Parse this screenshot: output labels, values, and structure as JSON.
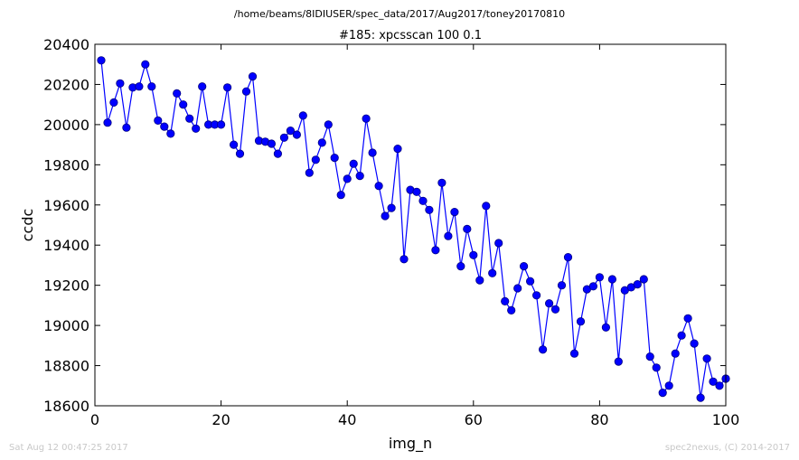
{
  "chart_data": {
    "type": "line",
    "suptitle": "/home/beams/8IDIUSER/spec_data/2017/Aug2017/toney20170810",
    "title": "#185: xpcsscan 100 0.1",
    "xlabel": "img_n",
    "ylabel": "ccdc",
    "xlim": [
      0,
      100
    ],
    "ylim": [
      18600,
      20400
    ],
    "xticks": [
      0,
      20,
      40,
      60,
      80,
      100
    ],
    "yticks": [
      18600,
      18800,
      19000,
      19200,
      19400,
      19600,
      19800,
      20000,
      20200,
      20400
    ],
    "grid": false,
    "line_color": "#0000ff",
    "marker_color": "#0000ff",
    "series": [
      {
        "x": [
          1,
          2,
          3,
          4,
          5,
          6,
          7,
          8,
          9,
          10,
          11,
          12,
          13,
          14,
          15,
          16,
          17,
          18,
          19,
          20,
          21,
          22,
          23,
          24,
          25,
          26,
          27,
          28,
          29,
          30,
          31,
          32,
          33,
          34,
          35,
          36,
          37,
          38,
          39,
          40,
          41,
          42,
          43,
          44,
          45,
          46,
          47,
          48,
          49,
          50,
          51,
          52,
          53,
          54,
          55,
          56,
          57,
          58,
          59,
          60,
          61,
          62,
          63,
          64,
          65,
          66,
          67,
          68,
          69,
          70,
          71,
          72,
          73,
          74,
          75,
          76,
          77,
          78,
          79,
          80,
          81,
          82,
          83,
          84,
          85,
          86,
          87,
          88,
          89,
          90,
          91,
          92,
          93,
          94,
          95,
          96,
          97,
          98,
          99,
          100
        ],
        "y": [
          20320,
          20010,
          20110,
          20205,
          19985,
          20185,
          20190,
          20300,
          20190,
          20020,
          19990,
          19955,
          20155,
          20100,
          20030,
          19980,
          20190,
          20000,
          20000,
          20000,
          20185,
          19900,
          19855,
          20165,
          20240,
          19920,
          19915,
          19905,
          19855,
          19935,
          19970,
          19950,
          20045,
          19760,
          19825,
          19910,
          20000,
          19835,
          19650,
          19730,
          19805,
          19745,
          20030,
          19860,
          19695,
          19545,
          19585,
          19880,
          19330,
          19675,
          19665,
          19620,
          19575,
          19375,
          19710,
          19445,
          19565,
          19295,
          19480,
          19350,
          19225,
          19595,
          19260,
          19410,
          19120,
          19075,
          19185,
          19295,
          19220,
          19150,
          18880,
          19110,
          19080,
          19200,
          19340,
          18860,
          19020,
          19180,
          19195,
          19240,
          18990,
          19230,
          18820,
          19175,
          19190,
          19205,
          19230,
          18845,
          18790,
          18665,
          18700,
          18860,
          18950,
          19035,
          18910,
          18640,
          18835,
          18720,
          18700,
          18735
        ]
      }
    ]
  },
  "footer": {
    "left": "Sat Aug 12 00:47:25 2017",
    "right": "spec2nexus, (C) 2014-2017"
  }
}
